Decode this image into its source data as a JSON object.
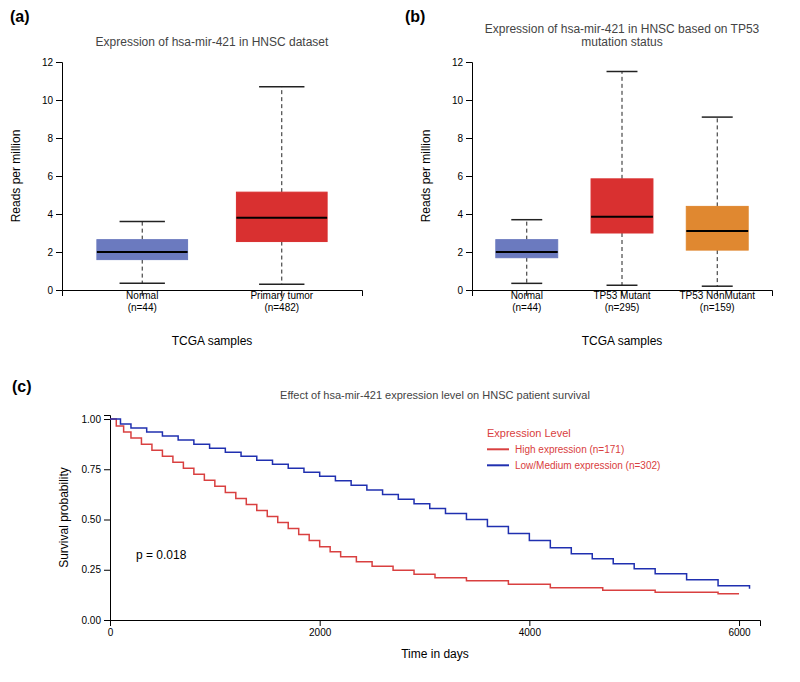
{
  "chart_data": [
    {
      "type": "box",
      "panel_label": "(a)",
      "title": "Expression of hsa-mir-421 in HNSC dataset",
      "xlabel": "TCGA samples",
      "ylabel": "Reads per million",
      "categories": [
        "Normal\n(n=44)",
        "Primary tumor\n(n=482)"
      ],
      "colors": [
        "#6b7abf",
        "#d93030"
      ],
      "boxes": [
        {
          "q1": 1.6,
          "median": 2.0,
          "q3": 2.65,
          "whislo": 0.35,
          "whishi": 3.6
        },
        {
          "q1": 2.55,
          "median": 3.8,
          "q3": 5.15,
          "whislo": 0.3,
          "whishi": 10.7
        }
      ],
      "ylim": [
        0,
        12
      ],
      "yticks": [
        0,
        2,
        4,
        6,
        8,
        10,
        12
      ],
      "grid": false
    },
    {
      "type": "box",
      "panel_label": "(b)",
      "title": "Expression of hsa-mir-421 in HNSC based on TP53\nmutation status",
      "xlabel": "TCGA samples",
      "ylabel": "Reads per million",
      "categories": [
        "Normal\n(n=44)",
        "TP53 Mutant\n(n=295)",
        "TP53 NonMutant\n(n=159)"
      ],
      "colors": [
        "#6b7abf",
        "#d93030",
        "#e08830"
      ],
      "boxes": [
        {
          "q1": 1.7,
          "median": 2.0,
          "q3": 2.65,
          "whislo": 0.35,
          "whishi": 3.7
        },
        {
          "q1": 3.0,
          "median": 3.85,
          "q3": 5.85,
          "whislo": 0.25,
          "whishi": 11.5
        },
        {
          "q1": 2.1,
          "median": 3.1,
          "q3": 4.4,
          "whislo": 0.2,
          "whishi": 9.1
        }
      ],
      "ylim": [
        0,
        12
      ],
      "yticks": [
        0,
        2,
        4,
        6,
        8,
        10,
        12
      ],
      "grid": false
    },
    {
      "type": "step",
      "panel_label": "(c)",
      "title": "Effect of hsa-mir-421 expression level on HNSC patient survival",
      "xlabel": "Time in days",
      "ylabel": "Survival probability",
      "annotations": [
        "p = 0.018"
      ],
      "legend_title": "Expression Level",
      "legend": "upper right",
      "series": [
        {
          "name": "High expression (n=171)",
          "color": "#d94040",
          "x": [
            0,
            60,
            130,
            200,
            300,
            400,
            500,
            600,
            700,
            800,
            900,
            1000,
            1100,
            1200,
            1300,
            1400,
            1500,
            1600,
            1700,
            1800,
            1900,
            2000,
            2100,
            2200,
            2350,
            2500,
            2700,
            2900,
            3100,
            3400,
            3800,
            4200,
            4700,
            5200,
            5800,
            6000
          ],
          "values": [
            1.0,
            0.965,
            0.935,
            0.905,
            0.875,
            0.845,
            0.815,
            0.785,
            0.755,
            0.725,
            0.695,
            0.665,
            0.635,
            0.605,
            0.575,
            0.545,
            0.515,
            0.485,
            0.455,
            0.425,
            0.395,
            0.365,
            0.34,
            0.315,
            0.29,
            0.268,
            0.248,
            0.228,
            0.21,
            0.195,
            0.178,
            0.16,
            0.148,
            0.138,
            0.13,
            0.13
          ]
        },
        {
          "name": "Low/Medium expression (n=302)",
          "color": "#2030b0",
          "x": [
            0,
            100,
            200,
            350,
            500,
            650,
            800,
            950,
            1100,
            1250,
            1400,
            1550,
            1700,
            1850,
            2000,
            2150,
            2300,
            2450,
            2600,
            2750,
            2900,
            3050,
            3200,
            3400,
            3600,
            3800,
            4000,
            4200,
            4400,
            4600,
            4800,
            5000,
            5200,
            5500,
            5800,
            6100
          ],
          "values": [
            1.0,
            0.975,
            0.955,
            0.935,
            0.915,
            0.895,
            0.875,
            0.855,
            0.835,
            0.815,
            0.795,
            0.775,
            0.755,
            0.735,
            0.715,
            0.693,
            0.67,
            0.647,
            0.624,
            0.601,
            0.578,
            0.555,
            0.53,
            0.5,
            0.465,
            0.43,
            0.395,
            0.36,
            0.33,
            0.305,
            0.28,
            0.255,
            0.23,
            0.2,
            0.17,
            0.155
          ]
        }
      ],
      "xlim": [
        0,
        6200
      ],
      "xticks": [
        0,
        2000,
        4000,
        6000
      ],
      "ylim": [
        0.0,
        1.02
      ],
      "yticks": [
        {
          "value": 0,
          "label": "0.00"
        },
        0.25,
        {
          "value": 0.5,
          "label": "0.50"
        },
        0.75,
        {
          "value": 1,
          "label": "1.00"
        }
      ],
      "grid": false
    }
  ]
}
